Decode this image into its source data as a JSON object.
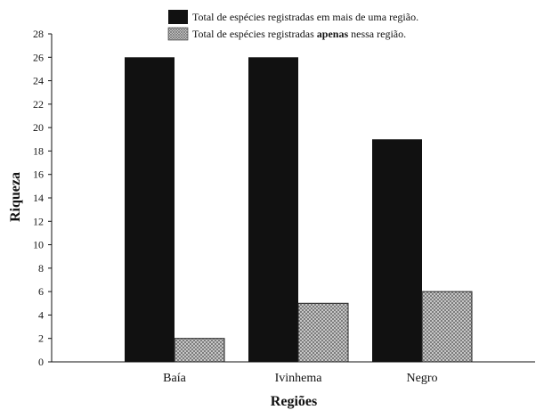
{
  "chart_data": {
    "type": "bar",
    "categories": [
      "Baía",
      "Ivinhema",
      "Negro"
    ],
    "series": [
      {
        "name": "Total de espécies registradas em mais de uma região.",
        "values": [
          26,
          26,
          19
        ],
        "color": "#111111",
        "fill": "solid"
      },
      {
        "name": "Total de espécies registradas apenas nessa região.",
        "values": [
          2,
          5,
          6
        ],
        "color": "#bdbdbd",
        "fill": "crosshatch"
      }
    ],
    "legend": {
      "item1_text": "Total de espécies registradas em mais de uma região.",
      "item2_pre": "Total de espécies registradas ",
      "item2_bold": "apenas",
      "item2_post": " nessa região.",
      "placement": "top"
    },
    "xlabel": "Regiões",
    "ylabel": "Riqueza",
    "ylim": [
      0,
      28
    ],
    "ytick_step": 2,
    "grid": false
  }
}
